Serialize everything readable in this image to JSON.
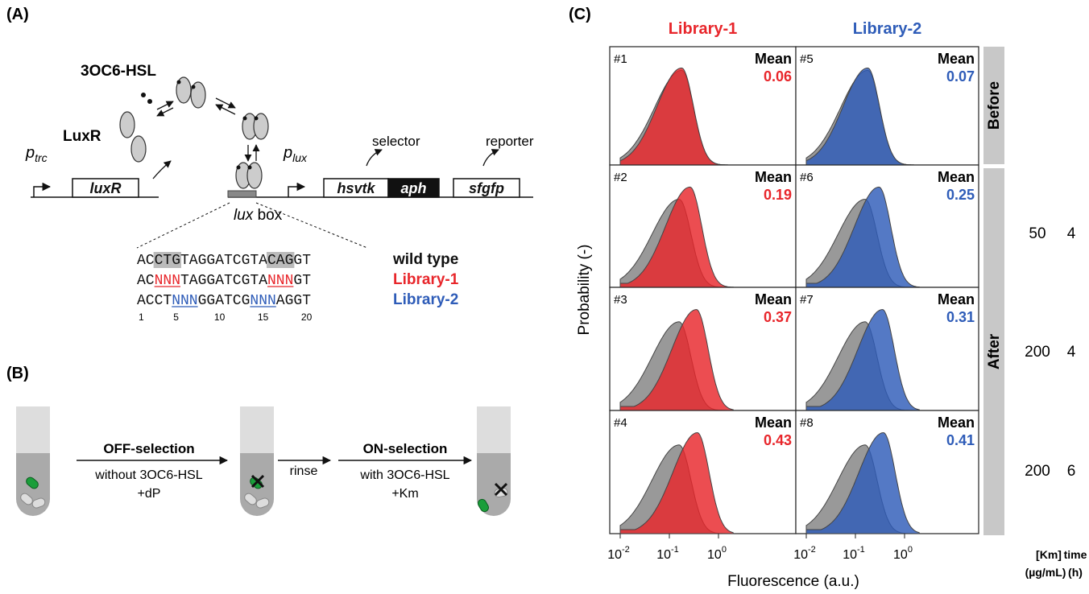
{
  "panel_a": {
    "label": "(A)",
    "inducer": "3OC6-HSL",
    "protein": "LuxR",
    "promoter_trc": {
      "base": "p",
      "sub": "trc"
    },
    "gene_luxr": "luxR",
    "lux_box": {
      "italic": "lux",
      "rest": " box"
    },
    "promoter_lux": {
      "base": "p",
      "sub": "lux"
    },
    "gene_hsvtk": "hsvtk",
    "gene_aph": "aph",
    "gene_sfgfp": "sfgfp",
    "selector": "selector",
    "reporter": "reporter",
    "sequences": [
      {
        "segments": [
          "AC",
          "CTG",
          "TAGGATCGTA",
          "CAG",
          "GT"
        ],
        "name": "wild type"
      },
      {
        "segments": [
          "AC",
          "NNN",
          "TAGGATCGTA",
          "NNN",
          "GT"
        ],
        "name": "Library-1"
      },
      {
        "segments": [
          "ACCT",
          "NNN",
          "GGATCG",
          "NNN",
          "AGGT"
        ],
        "name": "Library-2"
      }
    ],
    "positions": [
      1,
      5,
      10,
      15,
      20
    ]
  },
  "panel_b": {
    "label": "(B)",
    "off_selection": "OFF-selection",
    "off_condition": "without 3OC6-HSL",
    "off_drug": "+dP",
    "rinse": "rinse",
    "on_selection": "ON-selection",
    "on_condition": "with 3OC6-HSL",
    "on_drug": "+Km"
  },
  "panel_c": {
    "label": "(C)",
    "libraries": [
      "Library-1",
      "Library-2"
    ],
    "mean_label": "Mean",
    "plots": [
      {
        "id": "#1",
        "mean": 0.06
      },
      {
        "id": "#2",
        "mean": 0.19
      },
      {
        "id": "#3",
        "mean": 0.37
      },
      {
        "id": "#4",
        "mean": 0.43
      },
      {
        "id": "#5",
        "mean": 0.07
      },
      {
        "id": "#6",
        "mean": 0.25
      },
      {
        "id": "#7",
        "mean": 0.31
      },
      {
        "id": "#8",
        "mean": 0.41
      }
    ],
    "states": [
      "Before",
      "After"
    ],
    "conditions": [
      {
        "km": 50,
        "time": 4
      },
      {
        "km": 200,
        "time": 4
      },
      {
        "km": 200,
        "time": 6
      }
    ],
    "km_header": "[Km]",
    "km_unit": "(µg/mL)",
    "time_header": "time",
    "time_unit": "(h)",
    "y_label": "Probability (-)",
    "x_label": "Fluorescence (a.u.)",
    "x_ticks": [
      {
        "base": "10",
        "exp": "-2"
      },
      {
        "base": "10",
        "exp": "-1"
      },
      {
        "base": "10",
        "exp": "0"
      }
    ]
  }
}
